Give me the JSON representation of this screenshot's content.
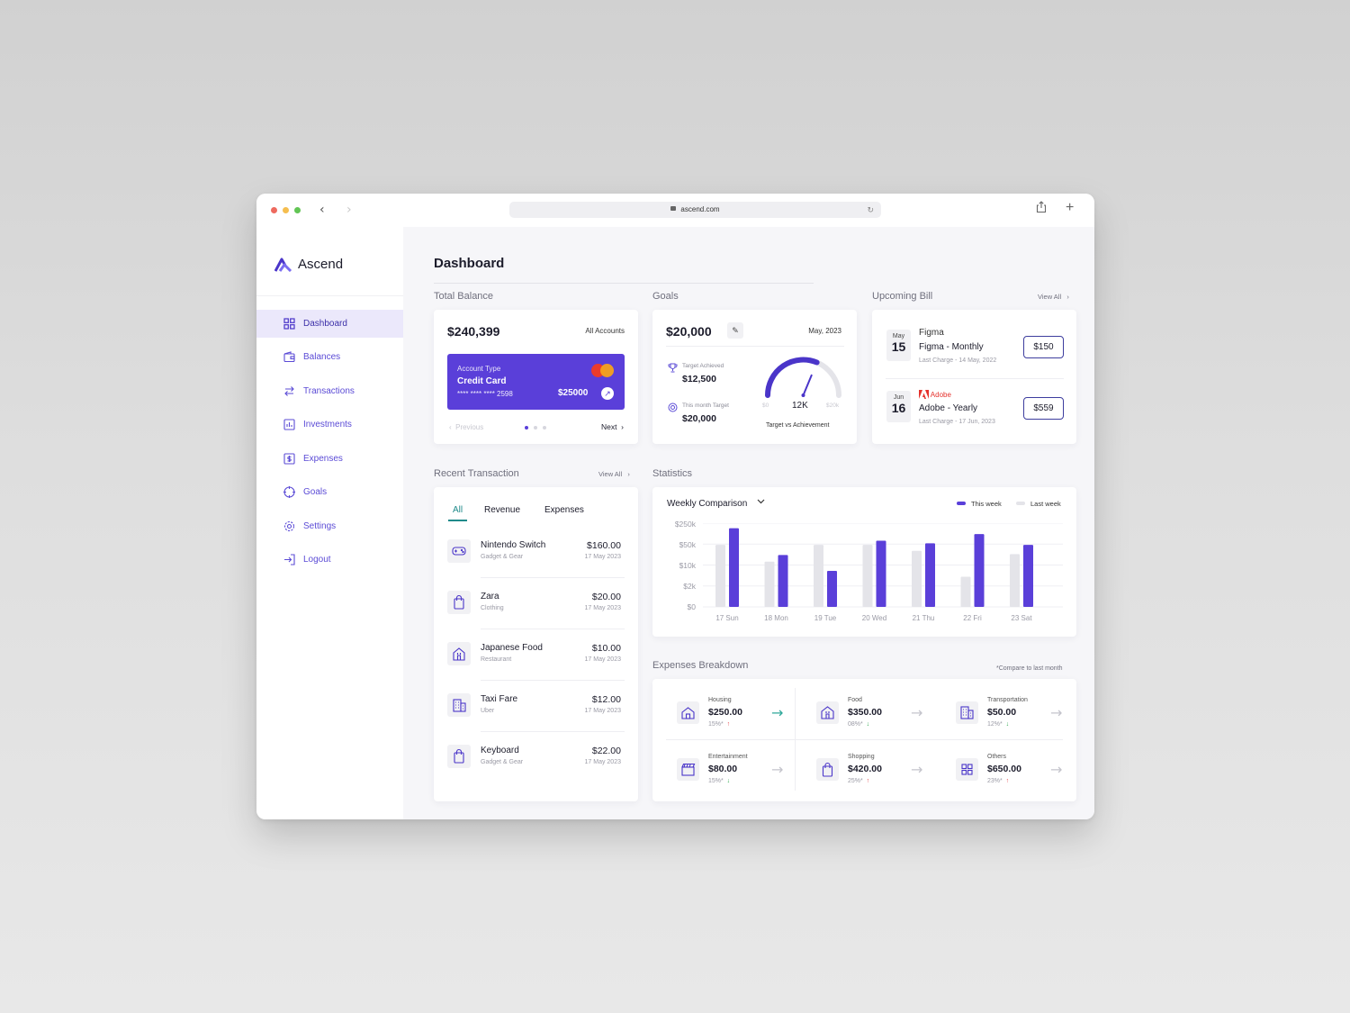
{
  "browser": {
    "url": "ascend.com"
  },
  "brand": {
    "name": "Ascend",
    "accent": "#5a3fd9"
  },
  "sidebar": {
    "items": [
      {
        "label": "Dashboard",
        "icon": "grid-icon",
        "active": true
      },
      {
        "label": "Balances",
        "icon": "wallet-icon"
      },
      {
        "label": "Transactions",
        "icon": "swap-icon"
      },
      {
        "label": "Investments",
        "icon": "investment-icon"
      },
      {
        "label": "Expenses",
        "icon": "expense-icon"
      },
      {
        "label": "Goals",
        "icon": "target-icon"
      },
      {
        "label": "Settings",
        "icon": "gear-icon"
      },
      {
        "label": "Logout",
        "icon": "logout-icon"
      }
    ]
  },
  "page": {
    "title": "Dashboard"
  },
  "total_balance": {
    "label": "Total Balance",
    "amount": "$240,399",
    "accounts": "All Accounts",
    "card": {
      "type_label": "Account Type",
      "type": "Credit Card",
      "number": "**** **** **** 2598",
      "balance": "$25000"
    },
    "prev": "Previous",
    "next": "Next"
  },
  "goals": {
    "label": "Goals",
    "amount": "$20,000",
    "date": "May, 2023",
    "achieved_label": "Target Achieved",
    "achieved_value": "$12,500",
    "target_label": "This month Target",
    "target_value": "$20,000",
    "gauge": {
      "min": "$0",
      "max": "$20k",
      "value": "12K",
      "fraction": 0.625,
      "caption": "Target vs Achievement"
    }
  },
  "upcoming_bill": {
    "label": "Upcoming Bill",
    "view_all": "View All",
    "bills": [
      {
        "month": "May",
        "day": "15",
        "company": "Figma",
        "name": "Figma - Monthly",
        "last": "Last Charge - 14 May, 2022",
        "amount": "$150"
      },
      {
        "month": "Jun",
        "day": "16",
        "company": "Adobe",
        "name": "Adobe - Yearly",
        "last": "Last Charge - 17 Jun, 2023",
        "amount": "$559"
      }
    ]
  },
  "recent_transaction": {
    "label": "Recent Transaction",
    "view_all": "View All",
    "tabs": [
      "All",
      "Revenue",
      "Expenses"
    ],
    "items": [
      {
        "name": "Nintendo Switch",
        "category": "Gadget & Gear",
        "amount": "$160.00",
        "date": "17 May 2023",
        "icon": "gamepad-icon"
      },
      {
        "name": "Zara",
        "category": "Clothing",
        "amount": "$20.00",
        "date": "17 May 2023",
        "icon": "shopping-bag-icon"
      },
      {
        "name": "Japanese Food",
        "category": "Restaurant",
        "amount": "$10.00",
        "date": "17 May 2023",
        "icon": "restaurant-icon"
      },
      {
        "name": "Taxi Fare",
        "category": "Uber",
        "amount": "$12.00",
        "date": "17 May 2023",
        "icon": "taxi-icon"
      },
      {
        "name": "Keyboard",
        "category": "Gadget & Gear",
        "amount": "$22.00",
        "date": "17 May 2023",
        "icon": "shopping-bag-icon"
      }
    ]
  },
  "statistics": {
    "label": "Statistics",
    "dropdown": "Weekly Comparison",
    "colors": {
      "this_week": "#5a3fd9",
      "last_week": "#e4e4e9"
    }
  },
  "chart_data": {
    "type": "bar",
    "categories": [
      "17 Sun",
      "18 Mon",
      "19 Tue",
      "20 Wed",
      "21 Thu",
      "22 Fri",
      "23 Sat"
    ],
    "y_ticks": [
      "$250k",
      "$50k",
      "$10k",
      "$2k",
      "$0"
    ],
    "series": [
      {
        "name": "This week",
        "values": [
          0.94,
          0.62,
          0.43,
          0.79,
          0.76,
          0.87,
          0.74
        ]
      },
      {
        "name": "Last week",
        "values": [
          0.74,
          0.54,
          0.74,
          0.74,
          0.67,
          0.36,
          0.63
        ]
      }
    ],
    "ylim": [
      0,
      1
    ],
    "grid": true,
    "legend_position": "top-right"
  },
  "expenses": {
    "label": "Expenses Breakdown",
    "note": "*Compare to last month",
    "items": [
      {
        "label": "Housing",
        "amount": "$250.00",
        "pct": "15%*",
        "dir": "up",
        "icon": "house-icon"
      },
      {
        "label": "Food",
        "amount": "$350.00",
        "pct": "08%*",
        "dir": "down",
        "icon": "food-icon"
      },
      {
        "label": "Transportation",
        "amount": "$50.00",
        "pct": "12%*",
        "dir": "down",
        "icon": "bus-icon"
      },
      {
        "label": "Entertainment",
        "amount": "$80.00",
        "pct": "15%*",
        "dir": "down",
        "icon": "clapper-icon"
      },
      {
        "label": "Shopping",
        "amount": "$420.00",
        "pct": "25%*",
        "dir": "up",
        "icon": "shopping-bag-icon"
      },
      {
        "label": "Others",
        "amount": "$650.00",
        "pct": "23%*",
        "dir": "up",
        "icon": "grid-icon"
      }
    ]
  }
}
